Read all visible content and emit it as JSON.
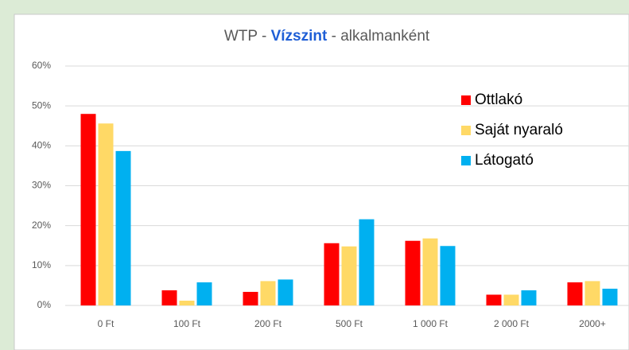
{
  "chart_data": {
    "type": "bar",
    "title": [
      "WTP -",
      "Vízszint",
      "- alkalmanként"
    ],
    "categories": [
      "0 Ft",
      "100 Ft",
      "200 Ft",
      "500 Ft",
      "1 000 Ft",
      "2 000 Ft",
      "2000+"
    ],
    "series": [
      {
        "name": "Ottlakó",
        "color": "#ff0000",
        "values": [
          48,
          3.8,
          3.4,
          15.6,
          16.2,
          2.7,
          5.8
        ]
      },
      {
        "name": "Saját nyaraló",
        "color": "#ffd966",
        "values": [
          45.6,
          1.2,
          6.1,
          14.8,
          16.8,
          2.7,
          6.1
        ]
      },
      {
        "name": "Látogató",
        "color": "#00b0f0",
        "values": [
          38.7,
          5.8,
          6.5,
          21.6,
          14.9,
          3.8,
          4.2
        ]
      }
    ],
    "ylim": [
      0,
      60
    ],
    "yticks": [
      {
        "value": 0,
        "label": "0%"
      },
      {
        "value": 10,
        "label": "10%"
      },
      {
        "value": 20,
        "label": "20%"
      },
      {
        "value": 30,
        "label": "30%"
      },
      {
        "value": 40,
        "label": "40%"
      },
      {
        "value": 50,
        "label": "50%"
      },
      {
        "value": 60,
        "label": "60%"
      }
    ],
    "grid": true,
    "legend": "upper right"
  }
}
